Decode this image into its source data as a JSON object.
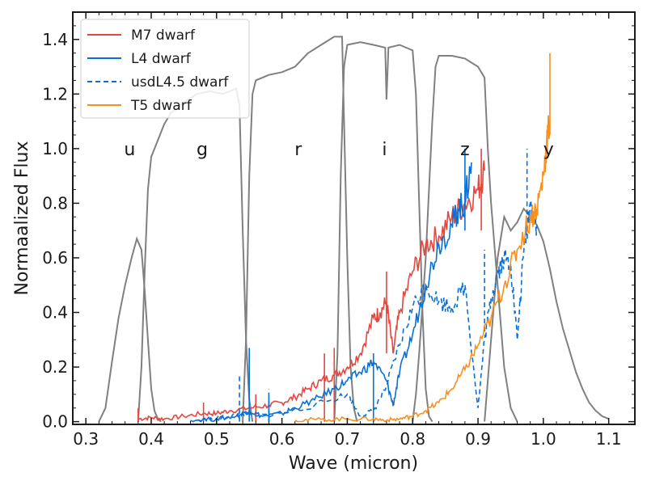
{
  "chart_data": {
    "type": "line",
    "xlabel": "Wave (micron)",
    "ylabel": "Normaalized Flux",
    "xlim": [
      0.28,
      1.14
    ],
    "ylim": [
      -0.01,
      1.5
    ],
    "xticks": [
      {
        "value": 0.3,
        "label": "0.3"
      },
      {
        "value": 0.4,
        "label": "0.4"
      },
      {
        "value": 0.5,
        "label": "0.5"
      },
      {
        "value": 0.6,
        "label": "0.6"
      },
      {
        "value": 0.7,
        "label": "0.7"
      },
      {
        "value": 0.8,
        "label": "0.8"
      },
      {
        "value": 0.9,
        "label": "0.9"
      },
      {
        "value": 1.0,
        "label": "1.0"
      },
      {
        "value": 1.1,
        "label": "1.1"
      }
    ],
    "yticks": [
      {
        "value": 0.0,
        "label": "0.0"
      },
      {
        "value": 0.2,
        "label": "0.2"
      },
      {
        "value": 0.4,
        "label": "0.4"
      },
      {
        "value": 0.6,
        "label": "0.6"
      },
      {
        "value": 0.8,
        "label": "0.8"
      },
      {
        "value": 1.0,
        "label": "1.0"
      },
      {
        "value": 1.2,
        "label": "1.2"
      },
      {
        "value": 1.4,
        "label": "1.4"
      }
    ],
    "legend_position": "top-left",
    "filter_color": "#808080",
    "filters": [
      {
        "band": "u",
        "label_x": 0.367,
        "points": [
          [
            0.32,
            0.0
          ],
          [
            0.33,
            0.05
          ],
          [
            0.34,
            0.22
          ],
          [
            0.35,
            0.38
          ],
          [
            0.36,
            0.5
          ],
          [
            0.37,
            0.6
          ],
          [
            0.378,
            0.67
          ],
          [
            0.385,
            0.63
          ],
          [
            0.39,
            0.48
          ],
          [
            0.395,
            0.3
          ],
          [
            0.4,
            0.12
          ],
          [
            0.405,
            0.04
          ],
          [
            0.41,
            0.01
          ],
          [
            0.415,
            0.0
          ]
        ]
      },
      {
        "band": "g",
        "label_x": 0.478,
        "points": [
          [
            0.38,
            0.0
          ],
          [
            0.385,
            0.2
          ],
          [
            0.39,
            0.55
          ],
          [
            0.395,
            0.85
          ],
          [
            0.4,
            0.97
          ],
          [
            0.41,
            1.03
          ],
          [
            0.42,
            1.09
          ],
          [
            0.43,
            1.13
          ],
          [
            0.45,
            1.17
          ],
          [
            0.47,
            1.2
          ],
          [
            0.49,
            1.21
          ],
          [
            0.51,
            1.2
          ],
          [
            0.52,
            1.21
          ],
          [
            0.53,
            1.22
          ],
          [
            0.535,
            1.16
          ],
          [
            0.54,
            0.7
          ],
          [
            0.545,
            0.3
          ],
          [
            0.55,
            0.08
          ],
          [
            0.555,
            0.0
          ]
        ]
      },
      {
        "band": "r",
        "label_x": 0.625,
        "points": [
          [
            0.54,
            0.0
          ],
          [
            0.545,
            0.3
          ],
          [
            0.55,
            0.9
          ],
          [
            0.555,
            1.2
          ],
          [
            0.56,
            1.25
          ],
          [
            0.58,
            1.27
          ],
          [
            0.6,
            1.28
          ],
          [
            0.62,
            1.3
          ],
          [
            0.64,
            1.35
          ],
          [
            0.66,
            1.38
          ],
          [
            0.68,
            1.41
          ],
          [
            0.692,
            1.41
          ],
          [
            0.695,
            1.1
          ],
          [
            0.7,
            0.6
          ],
          [
            0.705,
            0.2
          ],
          [
            0.71,
            0.05
          ],
          [
            0.715,
            0.0
          ]
        ]
      },
      {
        "band": "i",
        "label_x": 0.757,
        "points": [
          [
            0.68,
            0.0
          ],
          [
            0.685,
            0.25
          ],
          [
            0.69,
            0.9
          ],
          [
            0.695,
            1.3
          ],
          [
            0.7,
            1.38
          ],
          [
            0.72,
            1.39
          ],
          [
            0.74,
            1.38
          ],
          [
            0.758,
            1.37
          ],
          [
            0.76,
            1.18
          ],
          [
            0.763,
            1.37
          ],
          [
            0.78,
            1.38
          ],
          [
            0.8,
            1.36
          ],
          [
            0.805,
            1.2
          ],
          [
            0.81,
            0.8
          ],
          [
            0.815,
            0.4
          ],
          [
            0.82,
            0.12
          ],
          [
            0.825,
            0.02
          ],
          [
            0.83,
            0.0
          ]
        ]
      },
      {
        "band": "z",
        "label_x": 0.88,
        "points": [
          [
            0.8,
            0.0
          ],
          [
            0.805,
            0.1
          ],
          [
            0.81,
            0.25
          ],
          [
            0.82,
            0.6
          ],
          [
            0.83,
            1.1
          ],
          [
            0.835,
            1.3
          ],
          [
            0.84,
            1.34
          ],
          [
            0.86,
            1.34
          ],
          [
            0.88,
            1.33
          ],
          [
            0.9,
            1.3
          ],
          [
            0.91,
            1.26
          ],
          [
            0.915,
            1.0
          ],
          [
            0.92,
            0.8
          ],
          [
            0.93,
            0.5
          ],
          [
            0.94,
            0.2
          ],
          [
            0.95,
            0.05
          ],
          [
            0.96,
            0.0
          ]
        ]
      },
      {
        "band": "y",
        "label_x": 1.008,
        "points": [
          [
            0.91,
            0.0
          ],
          [
            0.92,
            0.3
          ],
          [
            0.93,
            0.6
          ],
          [
            0.94,
            0.75
          ],
          [
            0.95,
            0.7
          ],
          [
            0.96,
            0.73
          ],
          [
            0.97,
            0.78
          ],
          [
            0.98,
            0.75
          ],
          [
            0.99,
            0.72
          ],
          [
            1.0,
            0.66
          ],
          [
            1.01,
            0.56
          ],
          [
            1.02,
            0.44
          ],
          [
            1.03,
            0.34
          ],
          [
            1.04,
            0.26
          ],
          [
            1.05,
            0.18
          ],
          [
            1.06,
            0.12
          ],
          [
            1.07,
            0.07
          ],
          [
            1.08,
            0.04
          ],
          [
            1.09,
            0.02
          ],
          [
            1.1,
            0.01
          ]
        ]
      }
    ],
    "series": [
      {
        "name": "M7 dwarf",
        "color": "#e8453c",
        "dash": "",
        "points": [
          [
            0.38,
            0.01
          ],
          [
            0.4,
            0.015
          ],
          [
            0.42,
            0.01
          ],
          [
            0.45,
            0.02
          ],
          [
            0.48,
            0.03
          ],
          [
            0.5,
            0.03
          ],
          [
            0.52,
            0.04
          ],
          [
            0.55,
            0.05
          ],
          [
            0.58,
            0.06
          ],
          [
            0.6,
            0.07
          ],
          [
            0.62,
            0.09
          ],
          [
            0.64,
            0.12
          ],
          [
            0.66,
            0.15
          ],
          [
            0.68,
            0.17
          ],
          [
            0.7,
            0.2
          ],
          [
            0.72,
            0.25
          ],
          [
            0.74,
            0.38
          ],
          [
            0.75,
            0.4
          ],
          [
            0.76,
            0.44
          ],
          [
            0.77,
            0.25
          ],
          [
            0.78,
            0.4
          ],
          [
            0.8,
            0.55
          ],
          [
            0.82,
            0.65
          ],
          [
            0.84,
            0.68
          ],
          [
            0.86,
            0.75
          ],
          [
            0.88,
            0.8
          ],
          [
            0.9,
            0.85
          ],
          [
            0.91,
            0.92
          ]
        ],
        "spikes": [
          [
            0.38,
            0.05
          ],
          [
            0.48,
            0.07
          ],
          [
            0.56,
            0.1
          ],
          [
            0.665,
            0.25
          ],
          [
            0.68,
            0.27
          ],
          [
            0.76,
            0.55
          ],
          [
            0.905,
            1.0
          ]
        ]
      },
      {
        "name": "L4 dwarf",
        "color": "#0870d8",
        "dash": "",
        "points": [
          [
            0.46,
            0.005
          ],
          [
            0.5,
            0.01
          ],
          [
            0.53,
            0.02
          ],
          [
            0.55,
            0.04
          ],
          [
            0.57,
            0.02
          ],
          [
            0.6,
            0.03
          ],
          [
            0.62,
            0.05
          ],
          [
            0.65,
            0.08
          ],
          [
            0.68,
            0.12
          ],
          [
            0.7,
            0.15
          ],
          [
            0.72,
            0.18
          ],
          [
            0.74,
            0.22
          ],
          [
            0.76,
            0.15
          ],
          [
            0.77,
            0.06
          ],
          [
            0.78,
            0.18
          ],
          [
            0.8,
            0.32
          ],
          [
            0.82,
            0.5
          ],
          [
            0.84,
            0.65
          ],
          [
            0.86,
            0.72
          ],
          [
            0.87,
            0.78
          ],
          [
            0.88,
            0.8
          ],
          [
            0.89,
            0.95
          ]
        ],
        "spikes": [
          [
            0.55,
            0.27
          ],
          [
            0.58,
            0.09
          ],
          [
            0.74,
            0.25
          ],
          [
            0.88,
            1.0
          ]
        ]
      },
      {
        "name": "usdL4.5 dwarf",
        "color": "#0870d8",
        "dash": "6,4",
        "points": [
          [
            0.47,
            0.005
          ],
          [
            0.5,
            0.01
          ],
          [
            0.52,
            0.02
          ],
          [
            0.54,
            0.03
          ],
          [
            0.56,
            0.02
          ],
          [
            0.6,
            0.03
          ],
          [
            0.65,
            0.06
          ],
          [
            0.7,
            0.1
          ],
          [
            0.72,
            0.02
          ],
          [
            0.74,
            0.04
          ],
          [
            0.76,
            0.13
          ],
          [
            0.78,
            0.28
          ],
          [
            0.8,
            0.42
          ],
          [
            0.82,
            0.5
          ],
          [
            0.84,
            0.44
          ],
          [
            0.86,
            0.42
          ],
          [
            0.88,
            0.5
          ],
          [
            0.9,
            0.05
          ],
          [
            0.91,
            0.3
          ],
          [
            0.92,
            0.45
          ],
          [
            0.93,
            0.55
          ],
          [
            0.94,
            0.6
          ],
          [
            0.95,
            0.58
          ],
          [
            0.96,
            0.3
          ],
          [
            0.97,
            0.62
          ],
          [
            0.98,
            0.8
          ],
          [
            0.99,
            0.72
          ]
        ],
        "spikes": [
          [
            0.535,
            0.17
          ],
          [
            0.58,
            0.12
          ],
          [
            0.91,
            0.63
          ],
          [
            0.975,
            1.0
          ]
        ]
      },
      {
        "name": "T5 dwarf",
        "color": "#f7901e",
        "dash": "",
        "points": [
          [
            0.62,
            0.005
          ],
          [
            0.66,
            0.008
          ],
          [
            0.7,
            0.01
          ],
          [
            0.74,
            0.01
          ],
          [
            0.76,
            0.005
          ],
          [
            0.78,
            0.01
          ],
          [
            0.8,
            0.02
          ],
          [
            0.82,
            0.04
          ],
          [
            0.84,
            0.07
          ],
          [
            0.86,
            0.12
          ],
          [
            0.88,
            0.19
          ],
          [
            0.9,
            0.28
          ],
          [
            0.92,
            0.38
          ],
          [
            0.94,
            0.5
          ],
          [
            0.96,
            0.63
          ],
          [
            0.98,
            0.75
          ],
          [
            0.99,
            0.78
          ],
          [
            1.0,
            0.9
          ],
          [
            1.005,
            1.02
          ],
          [
            1.01,
            1.1
          ]
        ],
        "spikes": [
          [
            1.01,
            1.35
          ]
        ]
      }
    ]
  }
}
